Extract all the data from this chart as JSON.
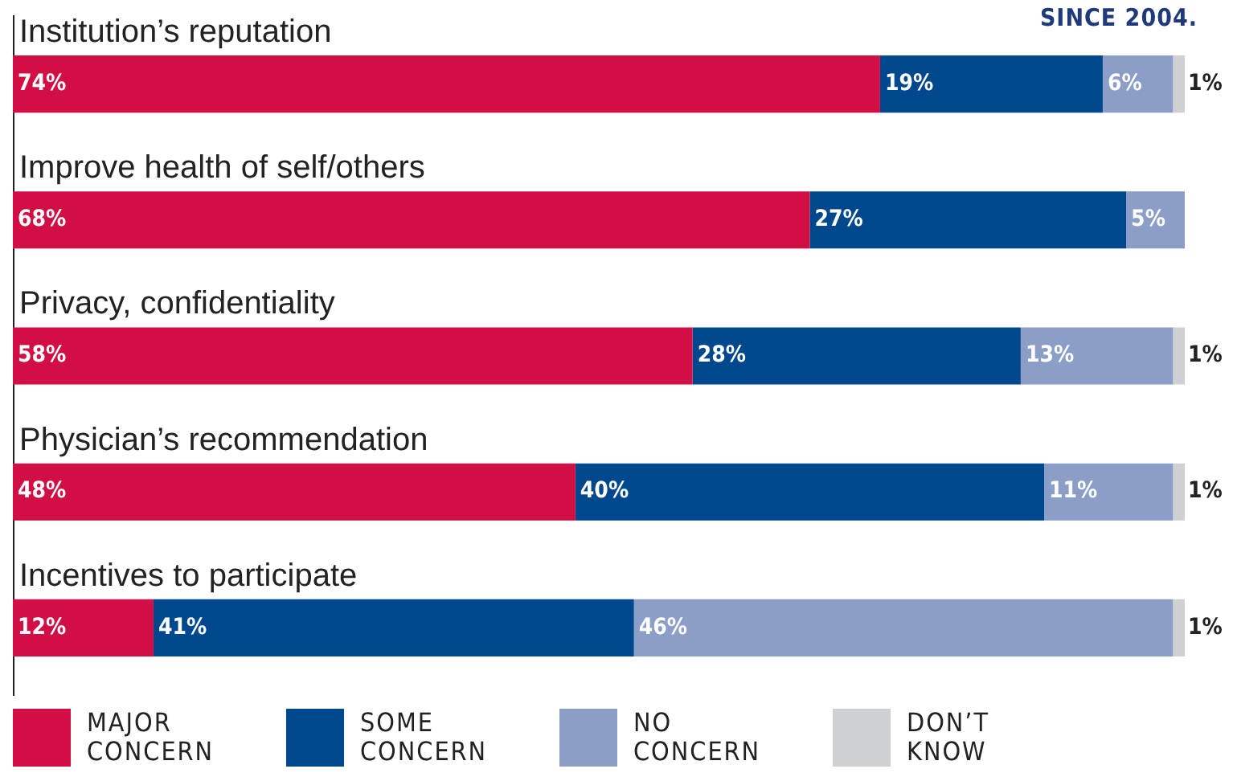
{
  "chart_data": {
    "type": "bar",
    "orientation": "horizontal",
    "stacked": true,
    "legend": "bottom",
    "tick_labels": false,
    "grid": false,
    "categories": [
      "Institution’s reputation",
      "Improve health of self/others",
      "Privacy, confidentiality",
      "Physician’s recommendation",
      "Incentives to participate"
    ],
    "xlim": [
      0,
      100
    ],
    "annotations": [
      "SINCE 2004."
    ],
    "series": [
      {
        "name": "MAJOR CONCERN",
        "color": "#d20f45",
        "values": [
          74,
          68,
          58,
          48,
          12
        ],
        "value_labels": [
          "74%",
          "68%",
          "58%",
          "48%",
          "12%"
        ]
      },
      {
        "name": "SOME CONCERN",
        "color": "#00488d",
        "values": [
          19,
          27,
          28,
          40,
          41
        ],
        "value_labels": [
          "19%",
          "27%",
          "28%",
          "40%",
          "41%"
        ]
      },
      {
        "name": "NO CONCERN",
        "color": "#8a9ec8",
        "values": [
          6,
          5,
          13,
          11,
          46
        ],
        "value_labels": [
          "6%",
          "5%",
          "13%",
          "11%",
          "46%"
        ]
      },
      {
        "name": "DON’T KNOW",
        "color": "#cfd0d2",
        "values": [
          1,
          null,
          1,
          1,
          1
        ],
        "value_labels": [
          "1%",
          null,
          "1%",
          "1%",
          "1%"
        ]
      }
    ]
  }
}
